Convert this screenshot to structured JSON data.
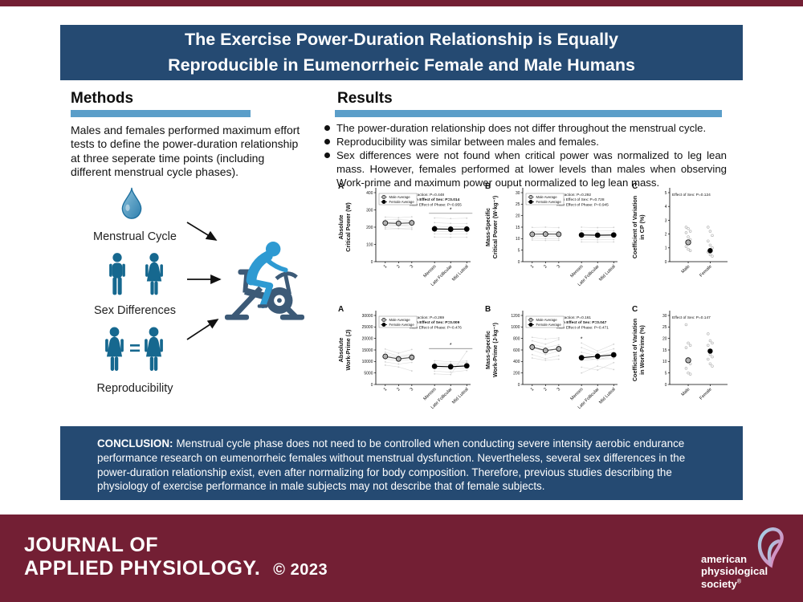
{
  "title": {
    "line1": "The Exercise Power-Duration Relationship is Equally",
    "line2": "Reproducible in Eumenorrheic Female and Male Humans"
  },
  "methods": {
    "heading": "Methods",
    "paragraph": "Males and females performed maximum effort tests to define the power-duration relationship at three seperate time points (including different menstrual cycle phases)."
  },
  "results": {
    "heading": "Results",
    "bullets": [
      "The power-duration relationship does not differ throughout the menstrual cycle.",
      "Reproducibility was similar between males and females.",
      "Sex differences were not found when critical power was normalized to leg lean mass. However, females performed at lower levels than males when observing Work-prime and maximum power ouput normalized to leg lean mass."
    ]
  },
  "diagram": {
    "labels": {
      "menstrual": "Menstrual Cycle",
      "sex": "Sex Differences",
      "repro": "Reproducibility"
    },
    "equals": "=",
    "icons": [
      "water-drop-icon",
      "male-figure-icon",
      "female-figure-icon",
      "arrow-icon",
      "exercise-bike-rider-icon"
    ]
  },
  "chart_data": [
    {
      "type": "group-line",
      "panel": "A",
      "ylabel_lines": [
        "Absolute",
        "Critical Power (W)"
      ],
      "ymax": 400,
      "yticks": [
        0,
        100,
        200,
        300,
        400
      ],
      "xcats": [
        "1",
        "2",
        "3",
        "Menses",
        "Late Follicular",
        "Mid Luteal"
      ],
      "legend": [
        "Male Average",
        "Female Average"
      ],
      "stats": [
        "Interaction: P=0.448",
        "Main Effect of Sex: P=0.014",
        "Main Effect of Phase: P=0.955"
      ],
      "stats_bold": 1,
      "male_avg": [
        224,
        222,
        225
      ],
      "female_avg": [
        190,
        188,
        189
      ],
      "err": 18,
      "male_ind": [
        [
          258,
          255,
          260
        ],
        [
          242,
          244,
          240
        ],
        [
          230,
          232,
          233
        ],
        [
          216,
          212,
          215
        ],
        [
          206,
          209,
          207
        ],
        [
          197,
          193,
          196
        ],
        [
          189,
          191,
          187
        ]
      ],
      "female_ind": [
        [
          253,
          250,
          252
        ],
        [
          226,
          222,
          221
        ],
        [
          206,
          201,
          203
        ],
        [
          191,
          189,
          191
        ],
        [
          176,
          173,
          175
        ],
        [
          161,
          159,
          161
        ],
        [
          143,
          141,
          142
        ]
      ],
      "sig": {
        "style": "bracket",
        "value": 280
      }
    },
    {
      "type": "group-line",
      "panel": "B",
      "ylabel_lines": [
        "Mass-Specific",
        "Critical Power (W·kg⁻¹)"
      ],
      "ymax": 30,
      "yticks": [
        0,
        5,
        10,
        15,
        20,
        25,
        30
      ],
      "xcats": [
        "1",
        "2",
        "3",
        "Menses",
        "Late Follicular",
        "Mid Luteal"
      ],
      "legend": [
        "Male Average",
        "Female Average"
      ],
      "stats": [
        "Interaction: P=0.292",
        "Main Effect of Sex: P=0.728",
        "Main Effect of Phase: P=0.945"
      ],
      "stats_bold": -1,
      "male_avg": [
        11.9,
        12.0,
        11.9
      ],
      "female_avg": [
        11.6,
        11.5,
        11.6
      ],
      "err": 1.2,
      "male_ind": [
        [
          14.9,
          15.0,
          14.8
        ],
        [
          13.3,
          13.1,
          13.2
        ],
        [
          12.5,
          12.6,
          12.4
        ],
        [
          11.9,
          12.0,
          11.8
        ],
        [
          11.1,
          11.0,
          11.1
        ],
        [
          10.2,
          10.0,
          10.1
        ],
        [
          9.4,
          9.2,
          9.3
        ]
      ],
      "female_ind": [
        [
          15.0,
          14.8,
          14.9
        ],
        [
          13.5,
          13.3,
          13.4
        ],
        [
          12.3,
          12.2,
          12.4
        ],
        [
          11.6,
          11.5,
          11.6
        ],
        [
          10.8,
          10.7,
          10.8
        ],
        [
          9.6,
          9.5,
          9.6
        ],
        [
          8.6,
          8.5,
          8.6
        ]
      ]
    },
    {
      "type": "scatter",
      "panel": "C",
      "ylabel_lines": [
        "Coefficient of Variation",
        "in CP (%)"
      ],
      "ymax": 5,
      "yticks": [
        0,
        1,
        2,
        3,
        4,
        5
      ],
      "xcats": [
        "Male",
        "Female"
      ],
      "stats": [
        "Effect of Sex: P=0.124"
      ],
      "stats_bold": -1,
      "male_mean": 1.4,
      "female_mean": 0.8,
      "male_pts": [
        2.5,
        2.4,
        2.2,
        2.1,
        1.8,
        1.6,
        1.1,
        0.9,
        0.8
      ],
      "female_pts": [
        2.5,
        2.2,
        1.9,
        1.5,
        1.2,
        1.0,
        0.7,
        0.5,
        0.4
      ]
    },
    {
      "type": "group-line",
      "panel": "A",
      "ylabel_lines": [
        "Absolute",
        "Work-Prime (J)"
      ],
      "ymax": 30000,
      "yticks": [
        0,
        5000,
        10000,
        15000,
        20000,
        25000,
        30000
      ],
      "xcats": [
        "1",
        "2",
        "3",
        "Menses",
        "Late Follicular",
        "Mid Luteal"
      ],
      "legend": [
        "Male Average",
        "Female Average"
      ],
      "stats": [
        "Interaction: P=0.269",
        "Main Effect of Sex: P=0.009",
        "Main Effect of Phase: P=0.476"
      ],
      "stats_bold": 1,
      "male_avg": [
        12200,
        11100,
        11800
      ],
      "female_avg": [
        7900,
        7700,
        8100
      ],
      "err": 900,
      "male_ind": [
        [
          15400,
          13600,
          15200
        ],
        [
          14000,
          12400,
          13200
        ],
        [
          12900,
          11900,
          12600
        ],
        [
          12000,
          11000,
          11600
        ],
        [
          11000,
          10300,
          10900
        ],
        [
          9800,
          8900,
          9600
        ],
        [
          8400,
          7600,
          5900
        ]
      ],
      "female_ind": [
        [
          10300,
          9900,
          10200
        ],
        [
          9400,
          9100,
          9600
        ],
        [
          8700,
          8400,
          8800
        ],
        [
          7800,
          7600,
          8000
        ],
        [
          7000,
          6800,
          7200
        ],
        [
          5800,
          5400,
          6100
        ],
        [
          4600,
          4300,
          14400
        ]
      ],
      "sig": {
        "style": "bracket",
        "value": 15600
      }
    },
    {
      "type": "group-line",
      "panel": "B",
      "ylabel_lines": [
        "Mass-Specific",
        "Work-Prime (J·kg⁻¹)"
      ],
      "ymax": 1200,
      "yticks": [
        0,
        200,
        400,
        600,
        800,
        1000,
        1200
      ],
      "xcats": [
        "1",
        "2",
        "3",
        "Menses",
        "Late Follicular",
        "Mid Luteal"
      ],
      "legend": [
        "Male Average",
        "Female Average"
      ],
      "stats": [
        "Interaction: P=0.161",
        "Main Effect of Sex: P=0.047",
        "Main Effect of Phase: P=0.471"
      ],
      "stats_bold": 1,
      "male_avg": [
        650,
        590,
        620
      ],
      "female_avg": [
        465,
        490,
        515
      ],
      "err": 40,
      "male_ind": [
        [
          820,
          790,
          810
        ],
        [
          760,
          700,
          780
        ],
        [
          700,
          640,
          690
        ],
        [
          660,
          560,
          630
        ],
        [
          600,
          520,
          580
        ],
        [
          520,
          450,
          500
        ],
        [
          460,
          420,
          440
        ]
      ],
      "female_ind": [
        [
          720,
          580,
          700
        ],
        [
          640,
          540,
          620
        ],
        [
          560,
          500,
          560
        ],
        [
          470,
          430,
          500
        ],
        [
          420,
          440,
          450
        ],
        [
          300,
          250,
          380
        ],
        [
          200,
          320,
          260
        ]
      ],
      "sig": {
        "style": "star",
        "slot": 3,
        "value": 760
      }
    },
    {
      "type": "scatter",
      "panel": "C",
      "ylabel_lines": [
        "Coefficient of Variation",
        "in Work-Prime (%)"
      ],
      "ymax": 30,
      "yticks": [
        0,
        5,
        10,
        15,
        20,
        25,
        30
      ],
      "xcats": [
        "Male",
        "Female"
      ],
      "stats": [
        "Effect of Sex: P=0.147"
      ],
      "stats_bold": -1,
      "male_mean": 10.5,
      "female_mean": 14.5,
      "male_pts": [
        26,
        18,
        17,
        16,
        11,
        9,
        7,
        5,
        4.5
      ],
      "female_pts": [
        22,
        19,
        18,
        17,
        13,
        12,
        11,
        9,
        8
      ]
    }
  ],
  "conclusion": {
    "label": "CONCLUSION:",
    "text": "Menstrual cycle phase does not need to be controlled when conducting severe intensity aerobic endurance performance research on eumenorrheic females without menstrual dysfunction. Nevertheless, several sex differences in the power-duration relationship exist, even after normalizing for body composition. Therefore, previous studies describing the physiology of exercise performance in male subjects may not describe that of female subjects."
  },
  "footer": {
    "journal_line1": "JOURNAL OF",
    "journal_line2": "APPLIED PHYSIOLOGY.",
    "copyright": "© 2023",
    "aps_line1": "american",
    "aps_line2": "physiological",
    "aps_line3": "society",
    "aps_mark": "®"
  },
  "colors": {
    "maroon": "#731f34",
    "navy": "#254a72",
    "heading_bar_blue": "#5b9ec9",
    "icon_teal_blue": "#16688f",
    "rider_blue": "#2e9ad2",
    "bike_slate": "#3c5a77",
    "male_marker": "#b3b3b3",
    "female_marker": "#000000"
  }
}
